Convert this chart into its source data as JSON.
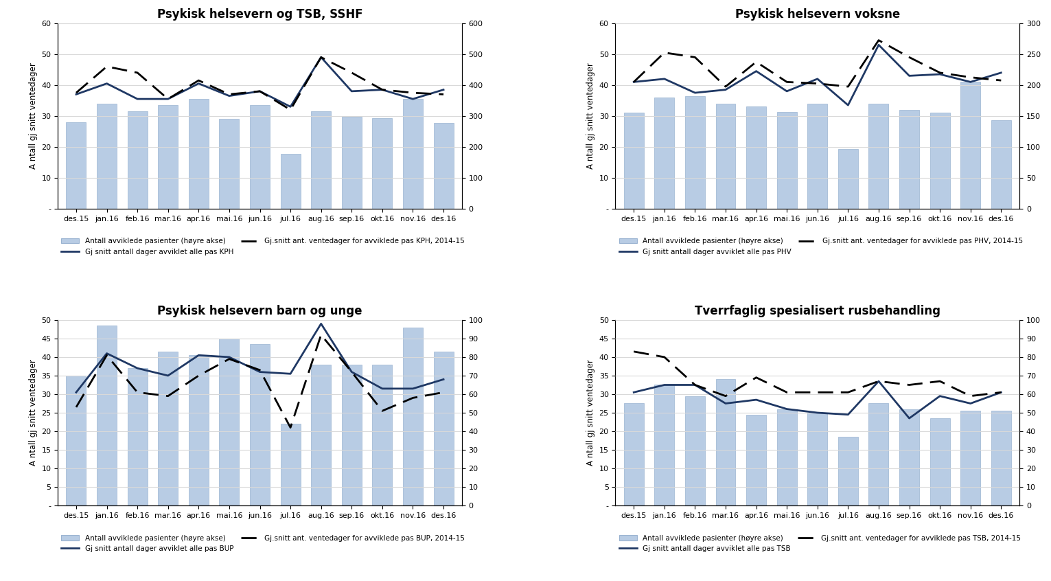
{
  "categories": [
    "des.15",
    "jan.16",
    "feb.16",
    "mar.16",
    "apr.16",
    "mai.16",
    "jun.16",
    "jul.16",
    "aug.16",
    "sep.16",
    "okt.16",
    "nov.16",
    "des.16"
  ],
  "plots": [
    {
      "title": "Psykisk helsevern og TSB, SSHF",
      "ylim_left": [
        0,
        60
      ],
      "ylim_right": [
        0,
        600
      ],
      "yticks_left": [
        0,
        10,
        20,
        30,
        40,
        50,
        60
      ],
      "yticks_right": [
        0,
        100,
        200,
        300,
        400,
        500,
        600
      ],
      "bars": [
        280,
        340,
        315,
        335,
        355,
        290,
        335,
        178,
        315,
        298,
        293,
        355,
        278
      ],
      "line_solid": [
        37,
        40.5,
        35.5,
        35.5,
        40.5,
        36.5,
        38,
        33,
        49,
        38,
        38.5,
        35.5,
        38.5
      ],
      "line_dashed": [
        37.5,
        46,
        44,
        35.5,
        41.5,
        37,
        38,
        32,
        49,
        44,
        38.5,
        37.5,
        37
      ],
      "legend1": "Antall avviklede pasienter (høyre akse)",
      "legend2": "Gj snitt antall dager avviklet alle pas KPH",
      "legend3": "Gj.snitt ant. ventedager for avviklede pas KPH, 2014-15"
    },
    {
      "title": "Psykisk helsevern voksne",
      "ylim_left": [
        0,
        60
      ],
      "ylim_right": [
        0,
        300
      ],
      "yticks_left": [
        0,
        10,
        20,
        30,
        40,
        50,
        60
      ],
      "yticks_right": [
        0,
        50,
        100,
        150,
        200,
        250,
        300
      ],
      "bars": [
        155,
        180,
        182,
        170,
        165,
        157,
        170,
        97,
        170,
        160,
        155,
        205,
        143
      ],
      "line_solid": [
        41,
        42,
        37.5,
        38.5,
        44.5,
        38,
        42,
        33.5,
        53,
        43,
        43.5,
        41,
        44
      ],
      "line_dashed": [
        41,
        50.5,
        49,
        39.5,
        47.5,
        41,
        40.5,
        39.5,
        54.5,
        49,
        44,
        42.5,
        41.5
      ],
      "legend1": "Antall avviklede pasienter (høyre akse)",
      "legend2": "Gj snitt antall dager avviklet alle pas PHV",
      "legend3": "Gj.snitt ant. ventedager for avviklede pas PHV, 2014-15"
    },
    {
      "title": "Psykisk helsevern barn og unge",
      "ylim_left": [
        0,
        50
      ],
      "ylim_right": [
        0,
        100
      ],
      "yticks_left": [
        0,
        5,
        10,
        15,
        20,
        25,
        30,
        35,
        40,
        45,
        50
      ],
      "yticks_right": [
        0,
        10,
        20,
        30,
        40,
        50,
        60,
        70,
        80,
        90,
        100
      ],
      "bars": [
        70,
        97,
        74,
        83,
        81,
        90,
        87,
        44,
        76,
        76,
        76,
        96,
        83
      ],
      "line_solid": [
        30.5,
        41,
        37,
        35,
        40.5,
        40,
        36,
        35.5,
        49,
        36,
        31.5,
        31.5,
        34
      ],
      "line_dashed": [
        26.5,
        40.5,
        30.5,
        29.5,
        35,
        39.5,
        36.5,
        21,
        46,
        36,
        25.5,
        29,
        30.5
      ],
      "legend1": "Antall avviklede pasienter (høyre akse)",
      "legend2": "Gj snitt antall dager avviklet alle pas BUP",
      "legend3": "Gj.snitt ant. ventedager for avviklede pas BUP, 2014-15"
    },
    {
      "title": "Tverrfaglig spesialisert rusbehandling",
      "ylim_left": [
        0,
        50
      ],
      "ylim_right": [
        0,
        100
      ],
      "yticks_left": [
        0,
        5,
        10,
        15,
        20,
        25,
        30,
        35,
        40,
        45,
        50
      ],
      "yticks_right": [
        0,
        10,
        20,
        30,
        40,
        50,
        60,
        70,
        80,
        90,
        100
      ],
      "bars": [
        55,
        65,
        59,
        68,
        49,
        52,
        50,
        37,
        55,
        52,
        47,
        51,
        51
      ],
      "line_solid": [
        30.5,
        32.5,
        32.5,
        27.5,
        28.5,
        26,
        25,
        24.5,
        33.5,
        23.5,
        29.5,
        27.5,
        30.5
      ],
      "line_dashed": [
        41.5,
        40,
        32.5,
        29.5,
        34.5,
        30.5,
        30.5,
        30.5,
        33.5,
        32.5,
        33.5,
        29.5,
        30.5
      ],
      "legend1": "Antall avviklede pasienter (høyre akse)",
      "legend2": "Gj snitt antall dager avviklet alle pas TSB",
      "legend3": "Gj.snitt ant. ventedager for avviklede pas TSB, 2014-15"
    }
  ],
  "bar_color": "#b8cce4",
  "bar_edgecolor": "#9ab3d1",
  "line_solid_color": "#1f3864",
  "line_dashed_color": "#000000",
  "ylabel": "A ntall gj snitt ventedager",
  "background_color": "#ffffff",
  "grid_color": "#d9d9d9"
}
